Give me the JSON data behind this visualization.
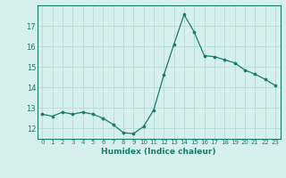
{
  "x": [
    0,
    1,
    2,
    3,
    4,
    5,
    6,
    7,
    8,
    9,
    10,
    11,
    12,
    13,
    14,
    15,
    16,
    17,
    18,
    19,
    20,
    21,
    22,
    23
  ],
  "y": [
    12.7,
    12.6,
    12.8,
    12.7,
    12.8,
    12.7,
    12.5,
    12.2,
    11.8,
    11.75,
    12.1,
    12.9,
    14.6,
    16.1,
    17.55,
    16.7,
    15.55,
    15.5,
    15.35,
    15.2,
    14.85,
    14.65,
    14.4,
    14.1
  ],
  "xlabel": "Humidex (Indice chaleur)",
  "ylim": [
    11.5,
    18.0
  ],
  "xlim": [
    -0.5,
    23.5
  ],
  "yticks": [
    12,
    13,
    14,
    15,
    16,
    17
  ],
  "xticks": [
    0,
    1,
    2,
    3,
    4,
    5,
    6,
    7,
    8,
    9,
    10,
    11,
    12,
    13,
    14,
    15,
    16,
    17,
    18,
    19,
    20,
    21,
    22,
    23
  ],
  "line_color": "#1a7a6e",
  "marker_color": "#1a7a6e",
  "bg_color": "#d6f0f0",
  "grid_color": "#b8d8d8",
  "xlabel_color": "#1a7a6e",
  "tick_color": "#1a7a6e",
  "spine_color": "#1a7a6e"
}
